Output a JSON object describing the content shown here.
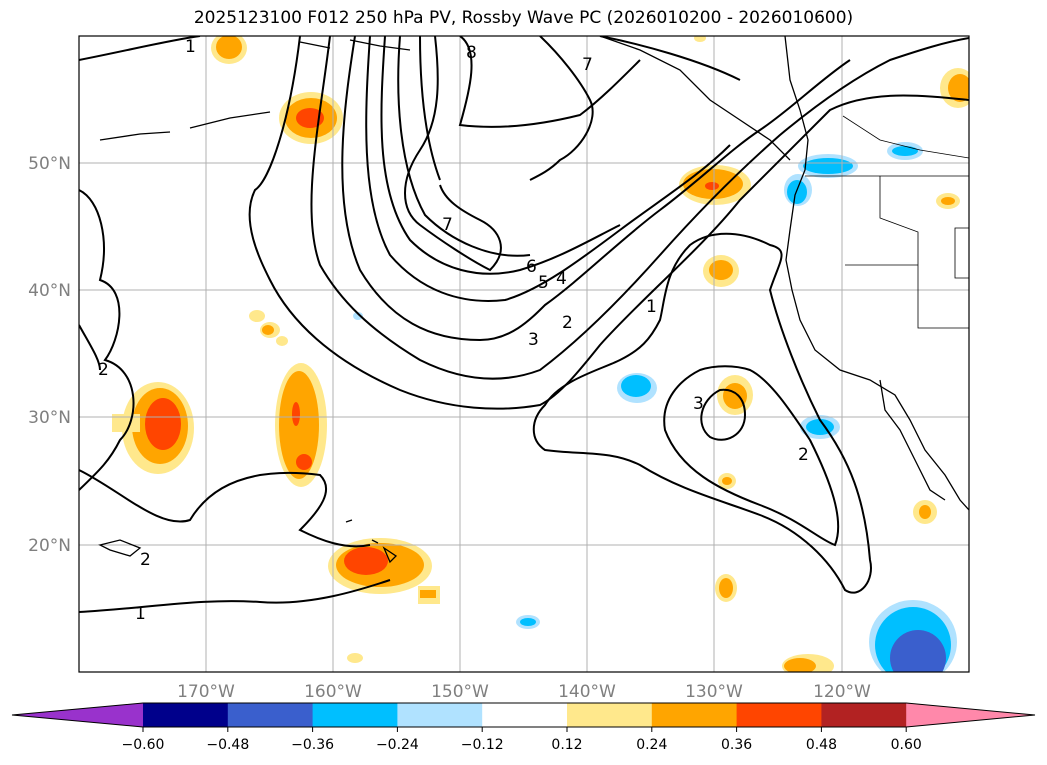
{
  "title": "2025123100 F012 250 hPa PV, Rossby Wave PC (2026010200 - 2026010600)",
  "lat_labels": [
    "50°N",
    "40°N",
    "30°N",
    "20°N"
  ],
  "lon_labels": [
    "170°W",
    "160°W",
    "150°W",
    "140°W",
    "130°W",
    "120°W"
  ],
  "contour_labels": [
    "1",
    "7",
    "8",
    "7",
    "6",
    "5",
    "4",
    "3",
    "2",
    "1",
    "3",
    "2",
    "2",
    "1",
    "2"
  ],
  "colorbar": {
    "ticks": [
      "−0.60",
      "−0.48",
      "−0.36",
      "−0.24",
      "−0.12",
      "0.12",
      "0.24",
      "0.36",
      "0.48",
      "0.60"
    ],
    "colors": [
      "#9932cc",
      "#00008b",
      "#3a5fcd",
      "#00bfff",
      "#b0e2ff",
      "#ffffff",
      "#ffe88c",
      "#ffa500",
      "#ff4500",
      "#b22222",
      "#ff88aa"
    ]
  },
  "chart_data": {
    "type": "contour-map",
    "field": "250 hPa PV with Rossby Wave PC shading",
    "lat_range": [
      10,
      60
    ],
    "lon_range": [
      -180,
      -110
    ],
    "lat_ticks": [
      50,
      40,
      30,
      20
    ],
    "lon_ticks": [
      -170,
      -160,
      -150,
      -140,
      -130,
      -120
    ],
    "contour_levels": [
      1,
      2,
      3,
      4,
      5,
      6,
      7,
      8
    ],
    "shading_levels": [
      -0.6,
      -0.48,
      -0.36,
      -0.24,
      -0.12,
      0.12,
      0.24,
      0.36,
      0.48,
      0.6
    ]
  }
}
